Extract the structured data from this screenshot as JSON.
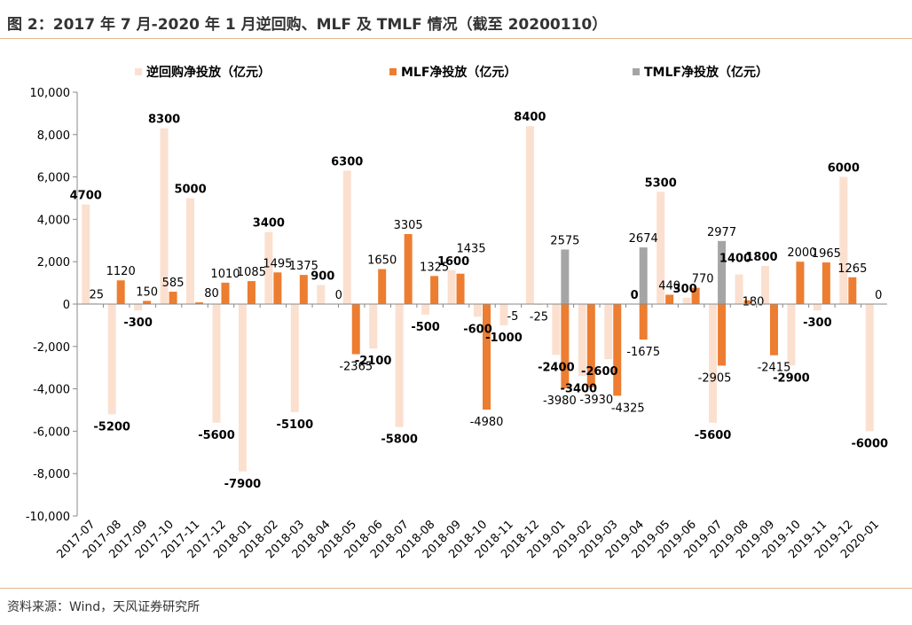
{
  "title": "图 2：2017 年 7 月-2020 年 1 月逆回购、MLF 及 TMLF 情况（截至 20200110）",
  "source": "资料来源：Wind，天风证券研究所",
  "colors": {
    "reverse_repo": "#fbe0d0",
    "mlf": "#ed7d31",
    "tmlf": "#a5a5a5",
    "rule": "#e3b98f",
    "axis": "#888888",
    "text": "#000000"
  },
  "chart_data": {
    "type": "bar",
    "ylim": [
      -10000,
      10000
    ],
    "yticks": [
      10000,
      8000,
      6000,
      4000,
      2000,
      0,
      -2000,
      -4000,
      -6000,
      -8000,
      -10000
    ],
    "ytick_labels": [
      "10,000",
      "8,000",
      "6,000",
      "4,000",
      "2,000",
      "0",
      "-2,000",
      "-4,000",
      "-6,000",
      "-8,000",
      "-10,000"
    ],
    "legend_position": "top",
    "categories": [
      "2017-07",
      "2017-08",
      "2017-09",
      "2017-10",
      "2017-11",
      "2017-12",
      "2018-01",
      "2018-02",
      "2018-03",
      "2018-04",
      "2018-05",
      "2018-06",
      "2018-07",
      "2018-08",
      "2018-09",
      "2018-10",
      "2018-11",
      "2018-12",
      "2019-01",
      "2019-02",
      "2019-03",
      "2019-04",
      "2019-05",
      "2019-06",
      "2019-07",
      "2019-08",
      "2019-09",
      "2019-10",
      "2019-11",
      "2019-12",
      "2020-01"
    ],
    "series": [
      {
        "name": "逆回购净投放（亿元）",
        "color_key": "reverse_repo",
        "values": [
          4700,
          -5200,
          -300,
          8300,
          5000,
          -5600,
          -7900,
          3400,
          -5100,
          900,
          6300,
          -2100,
          -5800,
          -500,
          1600,
          -600,
          -1000,
          8400,
          -2400,
          -3400,
          -2600,
          0,
          5300,
          300,
          -5600,
          1400,
          1800,
          -2900,
          -300,
          6000,
          -6000
        ]
      },
      {
        "name": "MLF净投放（亿元）",
        "color_key": "mlf",
        "values": [
          25,
          1120,
          150,
          585,
          80,
          1010,
          1085,
          1495,
          1375,
          0,
          -2365,
          1650,
          3305,
          1325,
          1435,
          -4980,
          -5,
          -25,
          -3980,
          -3930,
          -4325,
          -1675,
          440,
          770,
          -2905,
          180,
          -2415,
          2000,
          1965,
          1265,
          0
        ]
      },
      {
        "name": "TMLF净投放（亿元）",
        "color_key": "tmlf",
        "values": [
          null,
          null,
          null,
          null,
          null,
          null,
          null,
          null,
          null,
          null,
          null,
          null,
          null,
          null,
          null,
          null,
          null,
          null,
          2575,
          null,
          null,
          2674,
          null,
          null,
          2977,
          null,
          null,
          null,
          null,
          null,
          null
        ]
      }
    ]
  }
}
